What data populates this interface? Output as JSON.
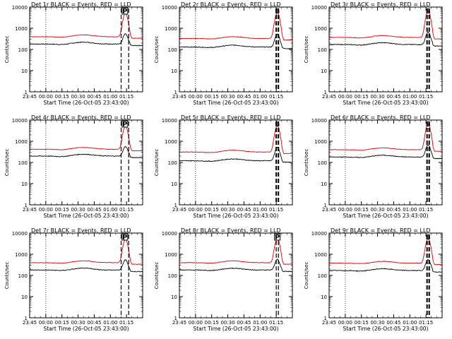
{
  "common": {
    "ylabel": "Counts/sec",
    "xlabel": "Start Time (26-Oct-05 23:43:00)",
    "xticks": [
      "23:45",
      "00:00",
      "00:15",
      "00:30",
      "00:45",
      "01:00",
      "01:15"
    ],
    "yticks": [
      "1",
      "10",
      "100",
      "1000",
      "10000"
    ],
    "flag_letters": {
      "P": "P",
      "S": "S"
    },
    "colors": {
      "events": "#000000",
      "lld": "#e00000"
    }
  },
  "chart_data": [
    {
      "type": "line",
      "title": "Det 1r BLACK = Events, RED = LLD",
      "flag": "P",
      "x_minutes": [
        -15,
        90
      ],
      "ylim": [
        1,
        10000
      ],
      "yscale": "log",
      "events_baseline": 180,
      "lld_baseline": 400,
      "peak": 4500,
      "peak_minute": 74,
      "dashes_minute": [
        70,
        77
      ]
    },
    {
      "type": "line",
      "title": "Det 2r BLACK = Events, RED = LLD",
      "flag": "S",
      "x_minutes": [
        -15,
        90
      ],
      "ylim": [
        1,
        10000
      ],
      "yscale": "log",
      "events_baseline": 130,
      "lld_baseline": 330,
      "peak": 5000,
      "peak_minute": 76,
      "dashes_minute": [
        75,
        77
      ]
    },
    {
      "type": "line",
      "title": "Det 3r BLACK = Events, RED = LLD",
      "flag": "S",
      "x_minutes": [
        -15,
        90
      ],
      "ylim": [
        1,
        10000
      ],
      "yscale": "log",
      "events_baseline": 170,
      "lld_baseline": 370,
      "peak": 6000,
      "peak_minute": 77,
      "dashes_minute": [
        76,
        78
      ]
    },
    {
      "type": "line",
      "title": "Det 4r BLACK = Events, RED = LLD",
      "flag": "P",
      "x_minutes": [
        -15,
        90
      ],
      "ylim": [
        1,
        10000
      ],
      "yscale": "log",
      "events_baseline": 200,
      "lld_baseline": 420,
      "peak": 4500,
      "peak_minute": 74,
      "dashes_minute": [
        70,
        77
      ]
    },
    {
      "type": "line",
      "title": "Det 5r BLACK = Events, RED = LLD",
      "flag": "S",
      "x_minutes": [
        -15,
        90
      ],
      "ylim": [
        1,
        10000
      ],
      "yscale": "log",
      "events_baseline": 120,
      "lld_baseline": 310,
      "peak": 5000,
      "peak_minute": 76,
      "dashes_minute": [
        75,
        77
      ]
    },
    {
      "type": "line",
      "title": "Det 6r BLACK = Events, RED = LLD",
      "flag": "S",
      "x_minutes": [
        -15,
        90
      ],
      "ylim": [
        1,
        10000
      ],
      "yscale": "log",
      "events_baseline": 180,
      "lld_baseline": 400,
      "peak": 6000,
      "peak_minute": 77,
      "dashes_minute": [
        76,
        78
      ]
    },
    {
      "type": "line",
      "title": "Det 7r BLACK = Events, RED = LLD",
      "flag": "P",
      "x_minutes": [
        -15,
        90
      ],
      "ylim": [
        1,
        10000
      ],
      "yscale": "log",
      "events_baseline": 180,
      "lld_baseline": 400,
      "peak": 4500,
      "peak_minute": 74,
      "dashes_minute": [
        70,
        77
      ]
    },
    {
      "type": "line",
      "title": "Det 8r BLACK = Events, RED = LLD",
      "flag": "P",
      "x_minutes": [
        -15,
        90
      ],
      "ylim": [
        1,
        10000
      ],
      "yscale": "log",
      "events_baseline": 180,
      "lld_baseline": 400,
      "peak": 5000,
      "peak_minute": 76,
      "dashes_minute": [
        75,
        77
      ]
    },
    {
      "type": "line",
      "title": "Det 9r BLACK = Events, RED = LLD",
      "flag": "S",
      "x_minutes": [
        -15,
        90
      ],
      "ylim": [
        1,
        10000
      ],
      "yscale": "log",
      "events_baseline": 170,
      "lld_baseline": 380,
      "peak": 5000,
      "peak_minute": 77,
      "dashes_minute": [
        76,
        78
      ]
    }
  ]
}
